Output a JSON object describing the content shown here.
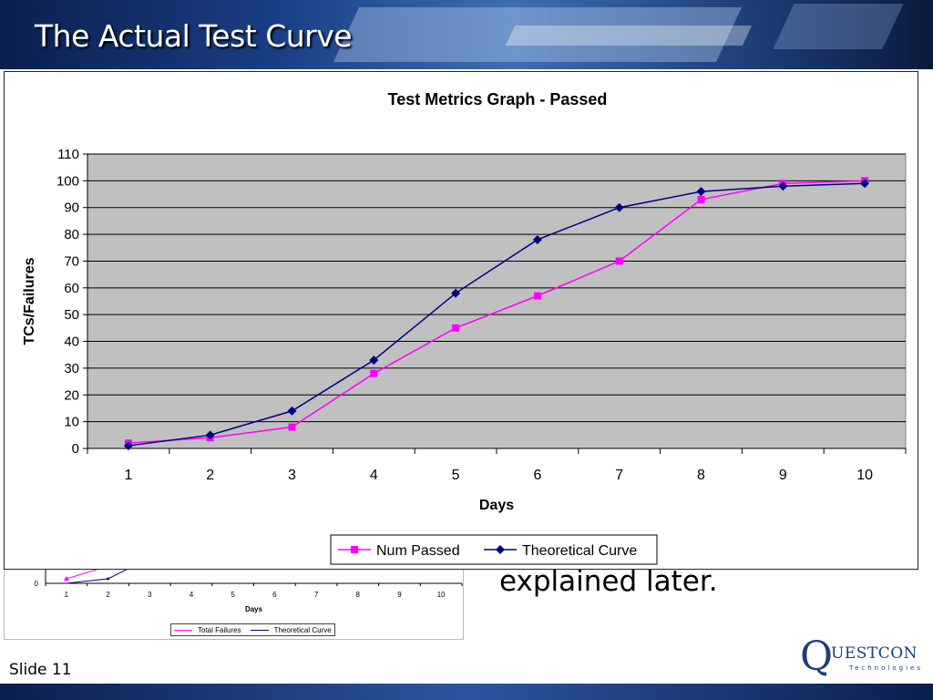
{
  "slide": {
    "title": "The Actual Test Curve",
    "slide_number": "Slide 11",
    "body_text": "explained later.",
    "logo": {
      "word": "UESTCON",
      "sub": "Technologies"
    }
  },
  "colors": {
    "num_passed": "#ff00ff",
    "theoretical": "#000080",
    "plot_bg": "#c0c0c0",
    "header_bg": "#1a3f86"
  },
  "chart_data": [
    {
      "type": "line",
      "title": "Test Metrics Graph - Passed",
      "xlabel": "Days",
      "ylabel": "TCs/Failures",
      "categories": [
        "1",
        "2",
        "3",
        "4",
        "5",
        "6",
        "7",
        "8",
        "9",
        "10"
      ],
      "x": [
        1,
        2,
        3,
        4,
        5,
        6,
        7,
        8,
        9,
        10
      ],
      "ylim": [
        0,
        110
      ],
      "yticks": [
        0,
        10,
        20,
        30,
        40,
        50,
        60,
        70,
        80,
        90,
        100,
        110
      ],
      "grid": true,
      "legend": "bottom",
      "series": [
        {
          "name": "Num Passed",
          "marker": "square",
          "color": "#ff00ff",
          "values": [
            2,
            4,
            8,
            28,
            45,
            57,
            70,
            93,
            99,
            100
          ]
        },
        {
          "name": "Theoretical Curve",
          "marker": "diamond",
          "color": "#000080",
          "values": [
            1,
            5,
            14,
            33,
            58,
            78,
            90,
            96,
            98,
            99
          ]
        }
      ]
    },
    {
      "type": "line",
      "title": "",
      "xlabel": "Days",
      "ylabel": "",
      "categories": [
        "1",
        "2",
        "3",
        "4",
        "5",
        "6",
        "7",
        "8",
        "9",
        "10"
      ],
      "x": [
        1,
        2,
        3,
        4,
        5,
        6,
        7,
        8,
        9,
        10
      ],
      "visible_ytick": "0",
      "legend": "bottom",
      "series": [
        {
          "name": "Total Failures",
          "marker": "triangle",
          "color": "#ff00ff"
        },
        {
          "name": "Theoretical Curve",
          "marker": "diamond",
          "color": "#000080"
        }
      ]
    }
  ]
}
